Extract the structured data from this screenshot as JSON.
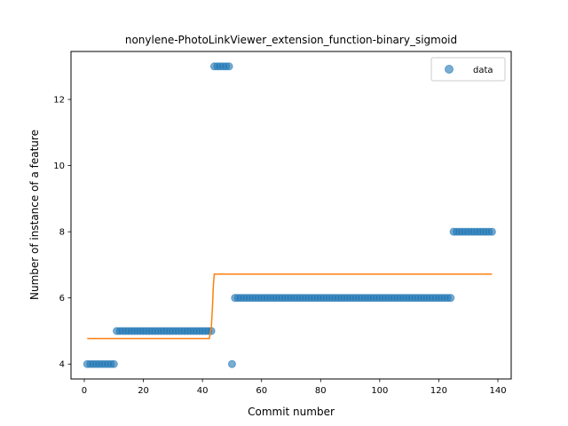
{
  "chart_data": {
    "type": "scatter",
    "title": "nonylene-PhotoLinkViewer_extension_function-binary_sigmoid",
    "xlabel": "Commit number",
    "ylabel": "Number of instance of a feature",
    "xlim": [
      -4.5,
      144.5
    ],
    "ylim": [
      3.55,
      13.45
    ],
    "x_ticks": [
      0,
      20,
      40,
      60,
      80,
      100,
      120,
      140
    ],
    "y_ticks": [
      4,
      6,
      8,
      10,
      12
    ],
    "grid": false,
    "legend_position": "top-right",
    "series": [
      {
        "name": "data",
        "kind": "scatter",
        "color": "#1f77b4",
        "opacity": 0.6,
        "segments": [
          {
            "x_from": 1,
            "x_to": 10,
            "y": 4
          },
          {
            "x_from": 11,
            "x_to": 43,
            "y": 5
          },
          {
            "x_from": 44,
            "x_to": 49,
            "y": 13
          },
          {
            "x_from": 50,
            "x_to": 50,
            "y": 4
          },
          {
            "x_from": 51,
            "x_to": 124,
            "y": 6
          },
          {
            "x_from": 125,
            "x_to": 138,
            "y": 8
          }
        ]
      },
      {
        "kind": "line",
        "color": "#ff7f0e",
        "x": [
          1,
          42.3,
          43.0,
          43.4,
          43.7,
          44.0,
          138
        ],
        "y": [
          4.77,
          4.77,
          5.1,
          5.75,
          6.4,
          6.72,
          6.72
        ]
      }
    ]
  }
}
